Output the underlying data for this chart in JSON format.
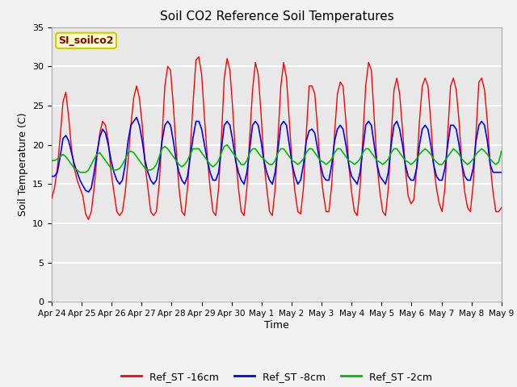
{
  "title": "Soil CO2 Reference Soil Temperatures",
  "xlabel": "Time",
  "ylabel": "Soil Temperature (C)",
  "ylim": [
    0,
    35
  ],
  "yticks": [
    0,
    5,
    10,
    15,
    20,
    25,
    30,
    35
  ],
  "annotation_text": "SI_soilco2",
  "legend_labels": [
    "Ref_ST -16cm",
    "Ref_ST -8cm",
    "Ref_ST -2cm"
  ],
  "line_colors": [
    "#ff0000",
    "#0000ff",
    "#00bb00"
  ],
  "fig_facecolor": "#f2f2f2",
  "plot_bg_color": "#e8e8e8",
  "gridline_color": "#ffffff",
  "tick_labels": [
    "Apr 24",
    "Apr 25",
    "Apr 26",
    "Apr 27",
    "Apr 28",
    "Apr 29",
    "Apr 30",
    "May 1",
    "May 2",
    "May 3",
    "May 4",
    "May 5",
    "May 6",
    "May 7",
    "May 8",
    "May 9"
  ],
  "x_ticks": [
    0,
    24,
    48,
    72,
    96,
    120,
    144,
    168,
    192,
    216,
    240,
    264,
    288,
    312,
    336,
    360
  ],
  "ref_st_16cm": [
    13.2,
    14.5,
    17.0,
    21.0,
    25.5,
    26.7,
    23.5,
    19.5,
    17.0,
    15.5,
    14.5,
    13.5,
    11.2,
    10.5,
    11.5,
    14.5,
    18.5,
    21.5,
    23.0,
    22.5,
    20.5,
    16.5,
    14.0,
    11.5,
    11.0,
    11.5,
    14.0,
    18.0,
    22.5,
    26.0,
    27.5,
    26.0,
    22.5,
    17.5,
    14.5,
    11.5,
    11.0,
    11.5,
    15.0,
    21.0,
    27.5,
    30.0,
    29.5,
    25.0,
    19.5,
    14.5,
    11.5,
    11.0,
    14.5,
    19.5,
    25.5,
    30.8,
    31.2,
    29.0,
    23.5,
    18.5,
    14.5,
    11.5,
    11.0,
    14.5,
    21.0,
    28.5,
    31.0,
    29.5,
    24.5,
    18.5,
    14.5,
    11.5,
    11.0,
    14.5,
    21.0,
    27.0,
    30.5,
    29.0,
    24.0,
    18.0,
    14.5,
    11.5,
    11.0,
    14.5,
    21.0,
    27.5,
    30.5,
    28.5,
    23.0,
    17.5,
    14.0,
    11.5,
    11.2,
    14.5,
    21.5,
    27.5,
    27.5,
    26.5,
    22.0,
    17.0,
    13.8,
    11.5,
    11.5,
    15.0,
    21.5,
    26.5,
    28.0,
    27.5,
    23.0,
    17.5,
    14.0,
    11.5,
    11.0,
    14.5,
    21.0,
    27.5,
    30.5,
    29.5,
    23.5,
    17.5,
    14.0,
    11.5,
    11.0,
    14.5,
    21.0,
    27.0,
    28.5,
    26.5,
    22.0,
    17.0,
    13.5,
    12.5,
    13.0,
    17.0,
    23.0,
    27.5,
    28.5,
    27.5,
    23.0,
    17.5,
    14.5,
    12.5,
    11.5,
    14.5,
    21.5,
    27.5,
    28.5,
    27.0,
    23.0,
    17.5,
    14.0,
    12.0,
    11.5,
    15.0,
    21.5,
    28.0,
    28.5,
    27.0,
    23.0,
    17.5,
    14.0,
    11.5,
    11.5,
    12.0
  ],
  "ref_st_8cm": [
    16.0,
    16.0,
    16.5,
    18.5,
    20.8,
    21.2,
    20.5,
    19.0,
    17.5,
    16.5,
    15.5,
    14.8,
    14.2,
    14.0,
    14.5,
    16.5,
    19.0,
    21.0,
    22.0,
    21.5,
    20.0,
    18.0,
    16.5,
    15.5,
    15.0,
    15.5,
    17.5,
    20.5,
    22.5,
    23.0,
    23.5,
    22.5,
    20.5,
    18.0,
    16.5,
    15.5,
    15.0,
    15.5,
    17.5,
    20.5,
    22.5,
    23.0,
    22.5,
    20.5,
    18.0,
    16.5,
    15.5,
    15.0,
    16.0,
    18.5,
    21.0,
    23.0,
    23.0,
    22.0,
    20.0,
    18.0,
    16.5,
    15.5,
    15.5,
    16.5,
    19.5,
    22.5,
    23.0,
    22.5,
    20.5,
    18.0,
    16.5,
    15.5,
    15.0,
    16.5,
    19.5,
    22.5,
    23.0,
    22.5,
    20.5,
    18.0,
    16.5,
    15.5,
    15.0,
    16.5,
    19.5,
    22.5,
    23.0,
    22.5,
    20.0,
    17.5,
    16.0,
    15.0,
    15.5,
    17.5,
    20.5,
    21.8,
    22.0,
    21.5,
    19.5,
    17.5,
    16.0,
    15.5,
    15.5,
    17.5,
    20.5,
    22.0,
    22.5,
    22.0,
    20.0,
    17.5,
    16.0,
    15.5,
    15.0,
    16.5,
    19.5,
    22.5,
    23.0,
    22.5,
    20.0,
    17.5,
    16.0,
    15.5,
    15.0,
    16.5,
    20.0,
    22.5,
    23.0,
    22.0,
    20.0,
    17.5,
    16.0,
    15.5,
    15.5,
    17.0,
    20.0,
    22.0,
    22.5,
    22.0,
    20.0,
    17.5,
    16.0,
    15.5,
    15.5,
    17.0,
    20.0,
    22.5,
    22.5,
    22.0,
    20.0,
    17.5,
    16.0,
    15.5,
    15.5,
    17.0,
    20.5,
    22.5,
    23.0,
    22.5,
    20.5,
    17.5,
    16.5,
    16.5,
    16.5,
    16.5
  ],
  "ref_st_2cm": [
    18.0,
    18.0,
    18.2,
    18.5,
    18.8,
    18.5,
    18.0,
    17.5,
    17.0,
    16.8,
    16.5,
    16.5,
    16.5,
    16.8,
    17.5,
    18.2,
    18.8,
    19.0,
    18.5,
    18.0,
    17.5,
    17.0,
    16.8,
    16.8,
    17.0,
    17.5,
    18.2,
    19.0,
    19.2,
    19.0,
    18.5,
    18.0,
    17.5,
    17.0,
    16.8,
    16.8,
    17.0,
    17.5,
    18.5,
    19.5,
    19.8,
    19.5,
    19.0,
    18.5,
    18.0,
    17.5,
    17.2,
    17.5,
    18.0,
    18.8,
    19.5,
    19.5,
    19.5,
    19.0,
    18.5,
    18.0,
    17.5,
    17.2,
    17.5,
    18.0,
    19.0,
    19.8,
    20.0,
    19.5,
    19.0,
    18.5,
    18.0,
    17.5,
    17.5,
    18.0,
    19.0,
    19.5,
    19.5,
    19.0,
    18.5,
    18.2,
    17.8,
    17.5,
    17.5,
    18.0,
    19.0,
    19.5,
    19.5,
    19.0,
    18.5,
    18.0,
    17.8,
    17.5,
    17.8,
    18.2,
    19.0,
    19.5,
    19.5,
    19.0,
    18.5,
    18.0,
    17.8,
    17.5,
    17.8,
    18.2,
    19.0,
    19.5,
    19.5,
    19.0,
    18.5,
    18.0,
    17.8,
    17.5,
    17.8,
    18.2,
    19.0,
    19.5,
    19.5,
    19.0,
    18.5,
    18.0,
    17.8,
    17.5,
    17.8,
    18.2,
    19.0,
    19.5,
    19.5,
    19.0,
    18.5,
    18.0,
    17.8,
    17.5,
    17.8,
    18.2,
    18.8,
    19.2,
    19.5,
    19.2,
    18.8,
    18.2,
    17.8,
    17.5,
    17.5,
    18.0,
    18.5,
    19.0,
    19.5,
    19.2,
    18.8,
    18.2,
    17.8,
    17.5,
    17.8,
    18.2,
    18.8,
    19.2,
    19.5,
    19.2,
    18.8,
    18.2,
    17.8,
    17.5,
    17.8,
    19.2
  ]
}
